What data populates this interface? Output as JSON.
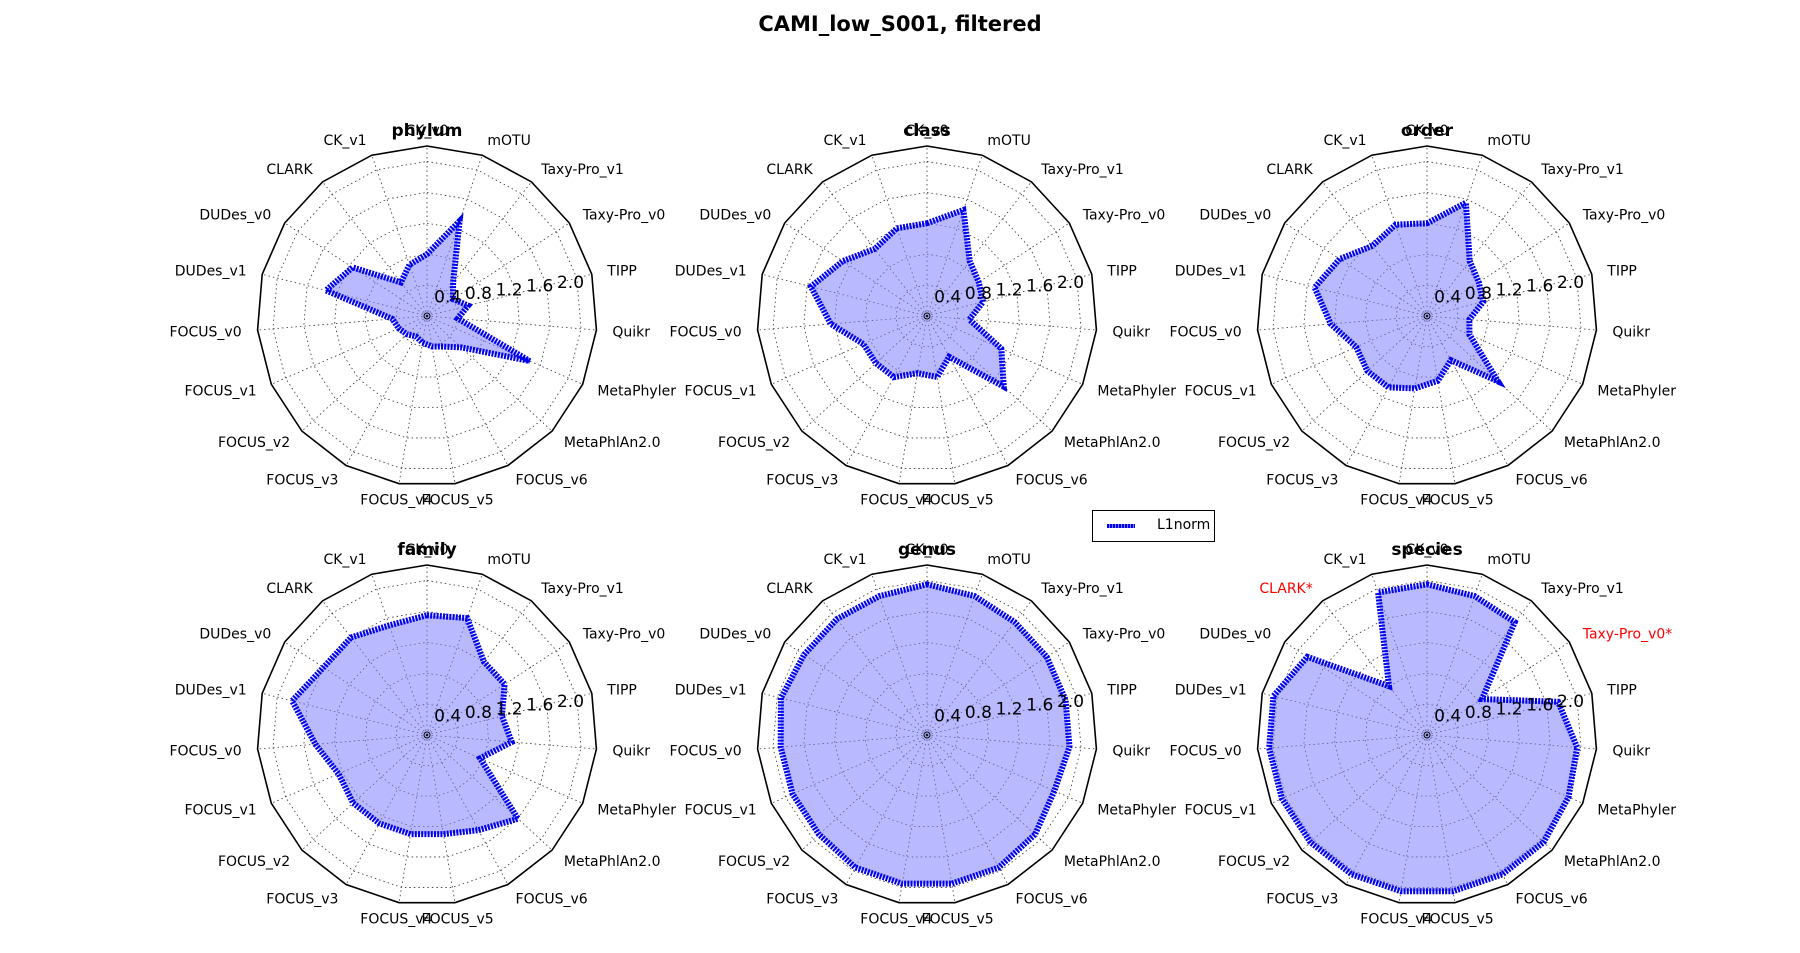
{
  "figure": {
    "title": "CAMI_low_S001, filtered"
  },
  "legend": {
    "label": "L1norm",
    "color": "#0000ee",
    "fill_color": "#8080ff"
  },
  "chart_data": [
    {
      "type": "radar",
      "title": "phylum",
      "axes": [
        "CK_v0",
        "mOTU",
        "Taxy-Pro_v1",
        "Taxy-Pro_v0",
        "TIPP",
        "Quikr",
        "MetaPhyler",
        "MetaPhlAn2.0",
        "FOCUS_v6",
        "FOCUS_v5",
        "FOCUS_v4",
        "FOCUS_v3",
        "FOCUS_v2",
        "FOCUS_v1",
        "FOCUS_v0",
        "DUDes_v1",
        "DUDes_v0",
        "CLARK",
        "CK_v1"
      ],
      "highlighted_axes": [],
      "series": [
        {
          "name": "L1norm",
          "values": [
            0.8,
            1.3,
            0.55,
            0.4,
            0.55,
            0.4,
            1.45,
            0.6,
            0.45,
            0.4,
            0.35,
            0.3,
            0.35,
            0.4,
            0.45,
            1.35,
            1.15,
            0.55,
            0.7
          ]
        }
      ],
      "r_ticks": [
        0.4,
        0.8,
        1.2,
        1.6,
        2.0
      ],
      "rlim": [
        0,
        2.2
      ]
    },
    {
      "type": "radar",
      "title": "class",
      "axes": [
        "CK_v0",
        "mOTU",
        "Taxy-Pro_v1",
        "Taxy-Pro_v0",
        "TIPP",
        "Quikr",
        "MetaPhyler",
        "MetaPhlAn2.0",
        "FOCUS_v6",
        "FOCUS_v5",
        "FOCUS_v4",
        "FOCUS_v3",
        "FOCUS_v2",
        "FOCUS_v1",
        "FOCUS_v0",
        "DUDes_v1",
        "DUDes_v0",
        "CLARK",
        "CK_v1"
      ],
      "highlighted_axes": [],
      "series": [
        {
          "name": "L1norm",
          "values": [
            1.2,
            1.45,
            0.9,
            0.8,
            0.75,
            0.55,
            1.05,
            1.35,
            0.6,
            0.8,
            0.75,
            0.9,
            0.9,
            0.9,
            1.25,
            1.55,
            1.3,
            1.1,
            1.2
          ]
        }
      ],
      "r_ticks": [
        0.4,
        0.8,
        1.2,
        1.6,
        2.0
      ],
      "rlim": [
        0,
        2.2
      ]
    },
    {
      "type": "radar",
      "title": "order",
      "axes": [
        "CK_v0",
        "mOTU",
        "Taxy-Pro_v1",
        "Taxy-Pro_v0",
        "TIPP",
        "Quikr",
        "MetaPhyler",
        "MetaPhlAn2.0",
        "FOCUS_v6",
        "FOCUS_v5",
        "FOCUS_v4",
        "FOCUS_v3",
        "FOCUS_v2",
        "FOCUS_v1",
        "FOCUS_v0",
        "DUDes_v1",
        "DUDes_v0",
        "CLARK",
        "CK_v1"
      ],
      "highlighted_axes": [],
      "series": [
        {
          "name": "L1norm",
          "values": [
            1.2,
            1.55,
            0.9,
            0.8,
            0.75,
            0.55,
            0.6,
            1.25,
            0.65,
            0.85,
            0.95,
            1.05,
            1.05,
            1.0,
            1.25,
            1.5,
            1.35,
            1.15,
            1.25
          ]
        }
      ],
      "r_ticks": [
        0.4,
        0.8,
        1.2,
        1.6,
        2.0
      ],
      "rlim": [
        0,
        2.2
      ]
    },
    {
      "type": "radar",
      "title": "family",
      "axes": [
        "CK_v0",
        "mOTU",
        "Taxy-Pro_v1",
        "Taxy-Pro_v0",
        "TIPP",
        "Quikr",
        "MetaPhyler",
        "MetaPhlAn2.0",
        "FOCUS_v6",
        "FOCUS_v5",
        "FOCUS_v4",
        "FOCUS_v3",
        "FOCUS_v2",
        "FOCUS_v1",
        "FOCUS_v0",
        "DUDes_v1",
        "DUDes_v0",
        "CLARK",
        "CK_v1"
      ],
      "highlighted_axes": [],
      "series": [
        {
          "name": "L1norm",
          "values": [
            1.55,
            1.6,
            1.2,
            1.2,
            1.0,
            1.1,
            0.75,
            1.6,
            1.4,
            1.3,
            1.3,
            1.3,
            1.3,
            1.25,
            1.45,
            1.8,
            1.6,
            1.6,
            1.5
          ]
        }
      ],
      "r_ticks": [
        0.4,
        0.8,
        1.2,
        1.6,
        2.0
      ],
      "rlim": [
        0,
        2.2
      ]
    },
    {
      "type": "radar",
      "title": "genus",
      "axes": [
        "CK_v0",
        "mOTU",
        "Taxy-Pro_v1",
        "Taxy-Pro_v0",
        "TIPP",
        "Quikr",
        "MetaPhyler",
        "MetaPhlAn2.0",
        "FOCUS_v6",
        "FOCUS_v5",
        "FOCUS_v4",
        "FOCUS_v3",
        "FOCUS_v2",
        "FOCUS_v1",
        "FOCUS_v0",
        "DUDes_v1",
        "DUDes_v0",
        "CLARK",
        "CK_v1"
      ],
      "highlighted_axes": [],
      "series": [
        {
          "name": "L1norm",
          "values": [
            1.95,
            1.9,
            1.85,
            1.85,
            1.85,
            1.85,
            1.8,
            1.9,
            1.95,
            1.95,
            1.95,
            1.95,
            1.9,
            1.9,
            1.9,
            1.95,
            1.9,
            1.9,
            1.9
          ]
        }
      ],
      "r_ticks": [
        0.4,
        0.8,
        1.2,
        1.6,
        2.0
      ],
      "rlim": [
        0,
        2.2
      ]
    },
    {
      "type": "radar",
      "title": "species",
      "axes": [
        "CK_v0",
        "mOTU",
        "Taxy-Pro_v1",
        "Taxy-Pro_v0",
        "TIPP",
        "Quikr",
        "MetaPhyler",
        "MetaPhlAn2.0",
        "FOCUS_v6",
        "FOCUS_v5",
        "FOCUS_v4",
        "FOCUS_v3",
        "FOCUS_v2",
        "FOCUS_v1",
        "FOCUS_v0",
        "DUDes_v1",
        "DUDes_v0",
        "CLARK*",
        "CK_v1"
      ],
      "highlighted_axes": [
        "CLARK*",
        "Taxy-Pro_v0*"
      ],
      "highlight_color": "#ff0000",
      "series": [
        {
          "name": "L1norm",
          "values": [
            1.95,
            1.9,
            1.85,
            0.85,
            1.75,
            1.95,
            2.0,
            2.05,
            2.05,
            2.05,
            2.05,
            2.05,
            2.05,
            2.05,
            2.05,
            2.05,
            1.85,
            0.8,
            1.95
          ]
        }
      ],
      "axes_override": {
        "3": "Taxy-Pro_v0*"
      },
      "r_ticks": [
        0.4,
        0.8,
        1.2,
        1.6,
        2.0
      ],
      "rlim": [
        0,
        2.2
      ]
    }
  ]
}
